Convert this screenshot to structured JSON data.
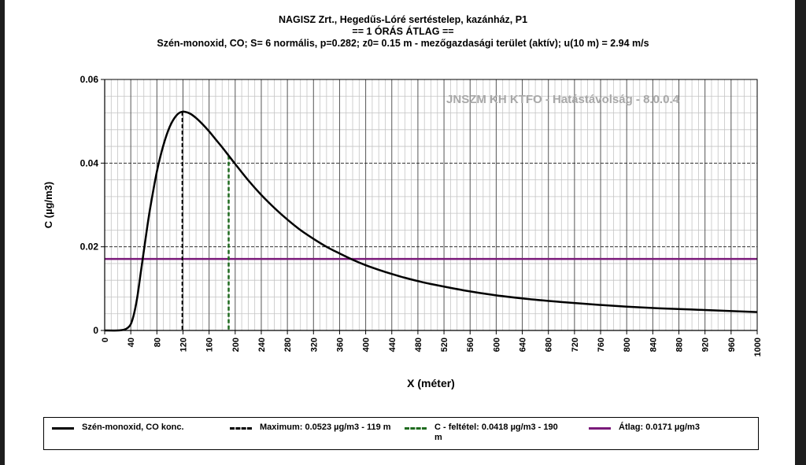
{
  "chart_data": {
    "type": "line",
    "title_lines": [
      "NAGISZ Zrt., Hegedűs-Lóré sertéstelep, kazánház, P1",
      "== 1 ÓRÁS ÁTLAG ==",
      "Szén-monoxid, CO;  S= 6 normális, p=0.282; z0= 0.15 m - mezőgazdasági terület (aktív); u(10 m) = 2.94 m/s"
    ],
    "xlabel": "X (méter)",
    "ylabel": "C (µg/m3)",
    "xlim": [
      0,
      1000
    ],
    "ylim": [
      0,
      0.06
    ],
    "x_ticks": [
      "0",
      "40",
      "80",
      "120",
      "160",
      "200",
      "240",
      "280",
      "320",
      "360",
      "400",
      "440",
      "480",
      "520",
      "560",
      "600",
      "640",
      "680",
      "720",
      "760",
      "800",
      "840",
      "880",
      "920",
      "960",
      "1000"
    ],
    "y_ticks": [
      "0",
      "0.02",
      "0.04",
      "0.06"
    ],
    "watermark": "JNSZM KH KTFO - Hatástávolság  - 8.0.0.4",
    "series": [
      {
        "name": "Szén-monoxid, CO konc.",
        "color": "#000000",
        "x": [
          0,
          20,
          30,
          35,
          40,
          45,
          50,
          55,
          60,
          65,
          70,
          80,
          90,
          100,
          110,
          119,
          130,
          140,
          150,
          160,
          170,
          180,
          190,
          200,
          220,
          240,
          260,
          280,
          300,
          320,
          340,
          360,
          380,
          400,
          420,
          440,
          460,
          480,
          500,
          550,
          600,
          650,
          700,
          750,
          800,
          850,
          900,
          950,
          1000
        ],
        "values": [
          0,
          0,
          0.0002,
          0.0006,
          0.0015,
          0.004,
          0.008,
          0.0135,
          0.019,
          0.0245,
          0.0295,
          0.038,
          0.0443,
          0.0488,
          0.0514,
          0.0523,
          0.0519,
          0.0508,
          0.0493,
          0.0476,
          0.0457,
          0.0438,
          0.0418,
          0.0398,
          0.0359,
          0.0324,
          0.0293,
          0.0265,
          0.024,
          0.0219,
          0.02,
          0.0184,
          0.0169,
          0.0156,
          0.0145,
          0.0135,
          0.0126,
          0.0118,
          0.0111,
          0.0096,
          0.0084,
          0.0075,
          0.0068,
          0.0062,
          0.0057,
          0.0053,
          0.005,
          0.0047,
          0.0044
        ]
      }
    ],
    "markers": {
      "maximum": {
        "x": 119,
        "y": 0.0523,
        "color": "#000000"
      },
      "condition": {
        "x": 190,
        "y": 0.0418,
        "color": "#1f6b1f"
      },
      "average": {
        "y": 0.0171,
        "color": "#7a1a7a"
      }
    },
    "legend": {
      "placement": "bottom",
      "items": [
        {
          "label": "Szén-monoxid, CO konc.",
          "style": "solid",
          "color": "#000000"
        },
        {
          "label": "Maximum: 0.0523 µg/m3 - 119 m",
          "style": "dashed",
          "color": "#000000"
        },
        {
          "label": "C - feltétel: 0.0418 µg/m3 - 190 m",
          "style": "dashed",
          "color": "#1f6b1f"
        },
        {
          "label": "Átlag: 0.0171 µg/m3",
          "style": "solid",
          "color": "#7a1a7a"
        }
      ]
    }
  }
}
